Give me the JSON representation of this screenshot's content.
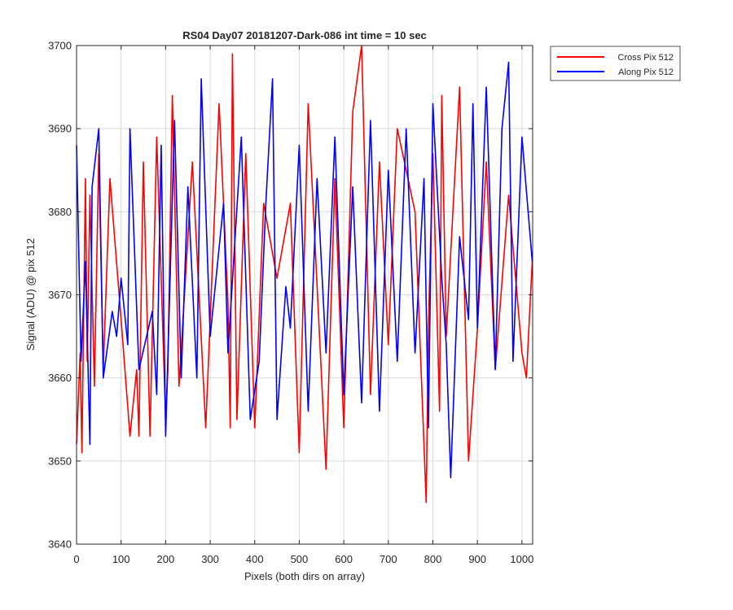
{
  "chart_data": {
    "type": "line",
    "title": "RS04 Day07 20181207-Dark-086 int time = 10 sec",
    "xlabel": "Pixels (both dirs on array)",
    "ylabel": "Signal (ADU) @ pix 512",
    "xlim": [
      0,
      1024
    ],
    "ylim": [
      3640,
      3700
    ],
    "xticks": [
      0,
      100,
      200,
      300,
      400,
      500,
      600,
      700,
      800,
      900,
      1000
    ],
    "yticks": [
      3640,
      3650,
      3660,
      3670,
      3680,
      3690,
      3700
    ],
    "grid": true,
    "legend_position": "outside-top-right",
    "series_note": "Noisy traces, 1024 samples each, approx mean 3673 ADU; only visible extremes listed",
    "series": [
      {
        "name": "Cross Pix 512",
        "color": "#ff0000",
        "x": [
          0,
          8,
          12,
          20,
          24,
          30,
          40,
          50,
          60,
          75,
          100,
          120,
          135,
          140,
          150,
          165,
          180,
          200,
          205,
          215,
          230,
          260,
          290,
          320,
          340,
          345,
          350,
          360,
          380,
          400,
          420,
          450,
          480,
          500,
          520,
          560,
          580,
          600,
          620,
          640,
          660,
          680,
          700,
          720,
          760,
          785,
          790,
          800,
          815,
          820,
          830,
          860,
          880,
          900,
          920,
          940,
          970,
          1000,
          1010,
          1023
        ],
        "y": [
          3652,
          3663,
          3651,
          3684,
          3662,
          3682,
          3659,
          3687,
          3661,
          3684,
          3667,
          3653,
          3661,
          3653,
          3686,
          3653,
          3689,
          3655,
          3661,
          3694,
          3659,
          3686,
          3654,
          3693,
          3669,
          3654,
          3699,
          3655,
          3687,
          3654,
          3681,
          3672,
          3681,
          3651,
          3693,
          3649,
          3684,
          3654,
          3692,
          3700,
          3658,
          3686,
          3664,
          3690,
          3680,
          3645,
          3666,
          3687,
          3656,
          3694,
          3665,
          3695,
          3650,
          3666,
          3686,
          3661,
          3682,
          3663,
          3660,
          3674
        ]
      },
      {
        "name": "Along Pix 512",
        "color": "#0000ff",
        "x": [
          0,
          10,
          20,
          30,
          35,
          50,
          60,
          80,
          90,
          100,
          115,
          120,
          140,
          170,
          180,
          190,
          200,
          220,
          235,
          250,
          270,
          280,
          300,
          330,
          340,
          370,
          390,
          410,
          425,
          440,
          450,
          470,
          480,
          500,
          520,
          540,
          560,
          580,
          600,
          620,
          640,
          660,
          680,
          700,
          720,
          740,
          760,
          780,
          790,
          800,
          820,
          830,
          840,
          860,
          880,
          890,
          900,
          920,
          940,
          955,
          970,
          980,
          1000,
          1023
        ],
        "y": [
          3688,
          3662,
          3674,
          3652,
          3683,
          3690,
          3660,
          3668,
          3665,
          3672,
          3664,
          3690,
          3661,
          3668,
          3658,
          3688,
          3653,
          3691,
          3660,
          3683,
          3660,
          3696,
          3665,
          3681,
          3663,
          3689,
          3655,
          3662,
          3681,
          3696,
          3655,
          3671,
          3666,
          3688,
          3656,
          3684,
          3663,
          3689,
          3658,
          3683,
          3657,
          3691,
          3656,
          3685,
          3662,
          3690,
          3663,
          3684,
          3654,
          3693,
          3672,
          3664,
          3648,
          3677,
          3667,
          3693,
          3666,
          3695,
          3661,
          3690,
          3698,
          3662,
          3689,
          3674
        ]
      }
    ]
  }
}
